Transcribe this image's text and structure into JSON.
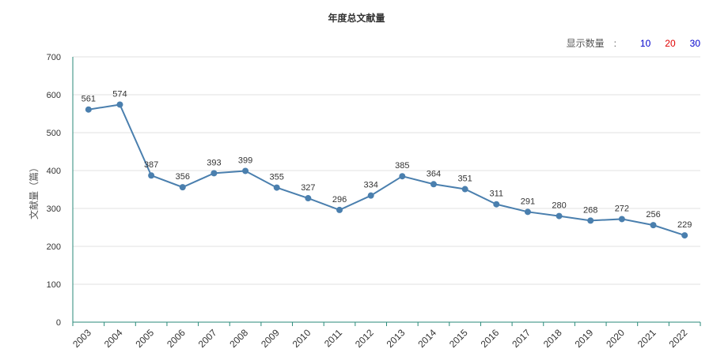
{
  "chart_data": {
    "type": "line",
    "title": "年度总文献量",
    "ylabel": "文献量（篇）",
    "xlabel": "",
    "categories": [
      "2003",
      "2004",
      "2005",
      "2006",
      "2007",
      "2008",
      "2009",
      "2010",
      "2011",
      "2012",
      "2013",
      "2014",
      "2015",
      "2016",
      "2017",
      "2018",
      "2019",
      "2020",
      "2021",
      "2022"
    ],
    "values": [
      561,
      574,
      387,
      356,
      393,
      399,
      355,
      327,
      296,
      334,
      385,
      364,
      351,
      311,
      291,
      280,
      268,
      272,
      256,
      229
    ],
    "ylim": [
      0,
      700
    ],
    "yticks": [
      0,
      100,
      200,
      300,
      400,
      500,
      600,
      700
    ],
    "grid": true,
    "line_color": "#4a7fae",
    "axis_color": "#2a8a7a"
  },
  "controls": {
    "count_label": "显示数量",
    "separator": ":",
    "options": [
      {
        "label": "10",
        "color": "#0000cc"
      },
      {
        "label": "20",
        "color": "#e00000"
      },
      {
        "label": "30",
        "color": "#0000cc"
      }
    ]
  }
}
